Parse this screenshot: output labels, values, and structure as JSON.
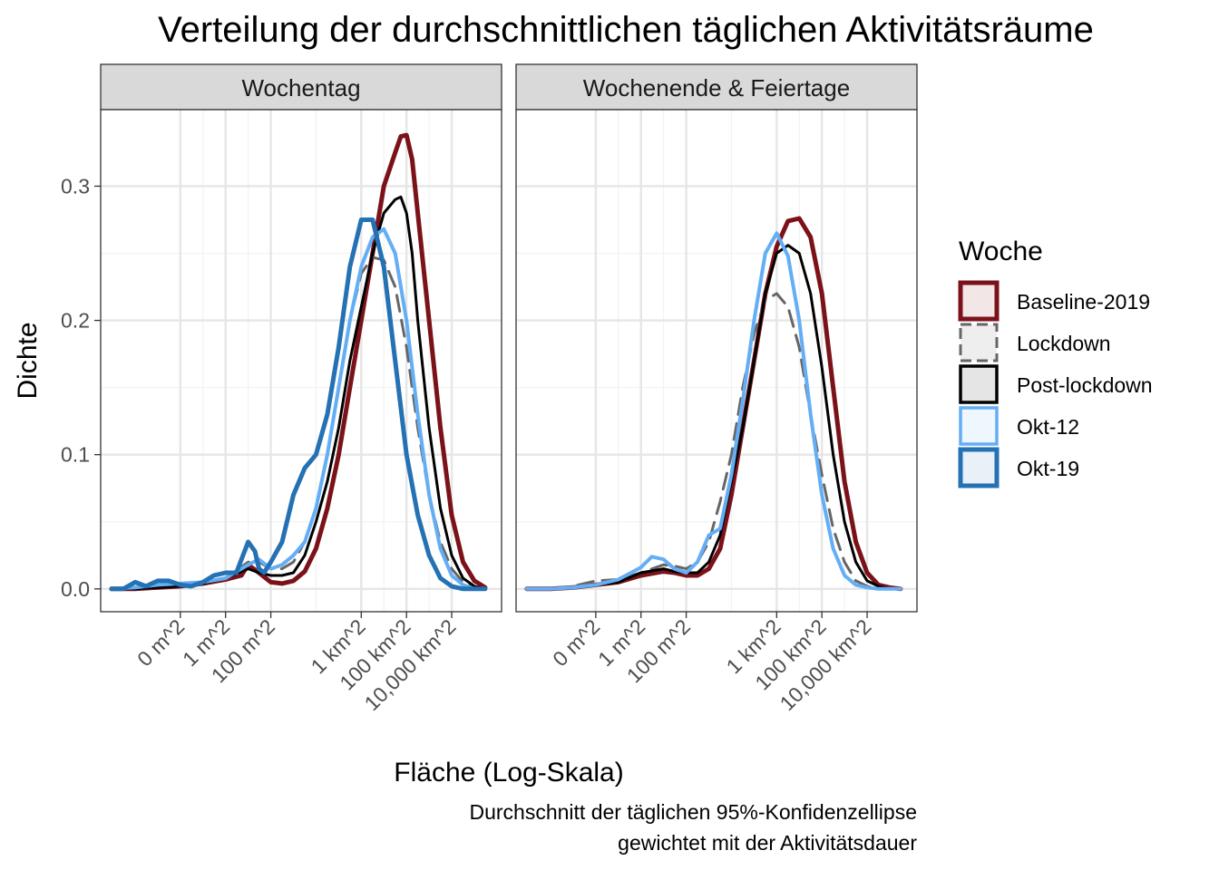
{
  "chart_data": {
    "type": "line",
    "subtype": "density",
    "title": "Verteilung der durchschnittlichen täglichen Aktivitätsräume",
    "xlabel": "Fläche (Log-Skala)",
    "ylabel": "Dichte",
    "caption_lines": [
      "Durchschnitt der täglichen 95%-Konfidenzellipse",
      "gewichtet mit der Aktivitätsdauer"
    ],
    "x_scale": "log10 (area in m^2)",
    "x_ticks": [
      {
        "label": "0 m^2",
        "value": 0.01
      },
      {
        "label": "1 m^2",
        "value": 1
      },
      {
        "label": "100 m^2",
        "value": 100
      },
      {
        "label": "1 km^2",
        "value": 1000000
      },
      {
        "label": "100 km^2",
        "value": 100000000
      },
      {
        "label": "10,000 km^2",
        "value": 10000000000
      }
    ],
    "xlim": [
      3e-06,
      1600000000000
    ],
    "y_ticks": [
      {
        "label": "0.0",
        "value": 0.0
      },
      {
        "label": "0.1",
        "value": 0.1
      },
      {
        "label": "0.2",
        "value": 0.2
      },
      {
        "label": "0.3",
        "value": 0.3
      }
    ],
    "ylim": [
      -0.017,
      0.357
    ],
    "grid": true,
    "legend": {
      "title": "Woche",
      "position": "right",
      "entries": [
        {
          "name": "Baseline-2019",
          "color": "#7b1219",
          "fill": "#f3e6e7",
          "dash": "solid",
          "width": 5
        },
        {
          "name": "Lockdown",
          "color": "#666666",
          "fill": "#eeeeee",
          "dash": "dashed",
          "width": 3
        },
        {
          "name": "Post-lockdown",
          "color": "#000000",
          "fill": "#e5e5e5",
          "dash": "solid",
          "width": 3
        },
        {
          "name": "Okt-12",
          "color": "#64aef5",
          "fill": "#eef6fe",
          "dash": "solid",
          "width": 4
        },
        {
          "name": "Okt-19",
          "color": "#2471b3",
          "fill": "#e9f0f7",
          "dash": "solid",
          "width": 5
        }
      ]
    },
    "panels": [
      {
        "name": "Wochentag",
        "series": [
          {
            "name": "Baseline-2019",
            "x": [
              9e-06,
              0.0001,
              0.001,
              0.01,
              0.1,
              1,
              5,
              10,
              30,
              100,
              316,
              1000,
              3162,
              10000,
              31623,
              100000,
              316228,
              1000000,
              3162278,
              10000000,
              31622777,
              56234133,
              100000000,
              177827941,
              316227766,
              1000000000,
              3162277660,
              10000000000,
              31622776602,
              100000000000,
              300000000000
            ],
            "y": [
              0.0,
              0.0,
              0.001,
              0.002,
              0.004,
              0.007,
              0.01,
              0.018,
              0.012,
              0.005,
              0.004,
              0.006,
              0.013,
              0.03,
              0.06,
              0.1,
              0.15,
              0.2,
              0.25,
              0.3,
              0.325,
              0.337,
              0.338,
              0.32,
              0.28,
              0.2,
              0.12,
              0.055,
              0.02,
              0.006,
              0.001
            ]
          },
          {
            "name": "Lockdown",
            "x": [
              9e-06,
              0.0001,
              0.001,
              0.01,
              0.1,
              1,
              10,
              30,
              100,
              316,
              1000,
              3162,
              10000,
              31623,
              100000,
              316228,
              1000000,
              3162278,
              10000000,
              31622777,
              100000000,
              316227766,
              1000000000,
              3162277660,
              10000000000,
              31622776602,
              100000000000,
              300000000000
            ],
            "y": [
              0.0,
              0.0,
              0.001,
              0.002,
              0.004,
              0.008,
              0.02,
              0.02,
              0.015,
              0.015,
              0.02,
              0.035,
              0.06,
              0.1,
              0.15,
              0.2,
              0.235,
              0.247,
              0.245,
              0.225,
              0.18,
              0.12,
              0.07,
              0.035,
              0.015,
              0.005,
              0.001,
              0.0
            ]
          },
          {
            "name": "Post-lockdown",
            "x": [
              9e-06,
              0.0001,
              0.001,
              0.01,
              0.1,
              1,
              10,
              30,
              100,
              316,
              1000,
              3162,
              10000,
              31623,
              100000,
              316228,
              1000000,
              3162278,
              10000000,
              31622777,
              56234133,
              100000000,
              177827941,
              316227766,
              1000000000,
              3162277660,
              10000000000,
              31622776602,
              100000000000,
              300000000000
            ],
            "y": [
              0.0,
              0.0,
              0.001,
              0.002,
              0.004,
              0.008,
              0.015,
              0.012,
              0.01,
              0.01,
              0.012,
              0.025,
              0.05,
              0.08,
              0.12,
              0.17,
              0.21,
              0.25,
              0.28,
              0.29,
              0.292,
              0.28,
              0.25,
              0.2,
              0.12,
              0.06,
              0.025,
              0.008,
              0.002,
              0.0
            ]
          },
          {
            "name": "Okt-12",
            "x": [
              9e-06,
              0.0001,
              0.001,
              0.01,
              0.1,
              1,
              10,
              30,
              100,
              316,
              1000,
              3162,
              10000,
              31623,
              100000,
              316228,
              1000000,
              3162278,
              10000000,
              31622777,
              100000000,
              316227766,
              1000000000,
              3162277660,
              10000000000,
              31622776602,
              100000000000,
              300000000000
            ],
            "y": [
              0.0,
              0.001,
              0.003,
              0.004,
              0.005,
              0.008,
              0.018,
              0.022,
              0.015,
              0.018,
              0.025,
              0.035,
              0.06,
              0.1,
              0.15,
              0.2,
              0.24,
              0.262,
              0.268,
              0.25,
              0.2,
              0.13,
              0.07,
              0.03,
              0.01,
              0.003,
              0.0,
              0.0
            ]
          },
          {
            "name": "Okt-19",
            "x": [
              9e-06,
              3e-05,
              0.0001,
              0.0003,
              0.001,
              0.003,
              0.01,
              0.03,
              0.1,
              0.3,
              1,
              3,
              10,
              20,
              30,
              50,
              100,
              316,
              1000,
              3162,
              10000,
              31623,
              100000,
              316228,
              1000000,
              3162278,
              10000000,
              31622777,
              100000000,
              316227766,
              1000000000,
              3162277660,
              10000000000,
              31622776602,
              100000000000,
              300000000000
            ],
            "y": [
              0.0,
              0.0,
              0.005,
              0.002,
              0.006,
              0.006,
              0.003,
              0.002,
              0.005,
              0.01,
              0.012,
              0.012,
              0.035,
              0.028,
              0.015,
              0.012,
              0.02,
              0.035,
              0.07,
              0.09,
              0.1,
              0.13,
              0.18,
              0.24,
              0.275,
              0.275,
              0.24,
              0.17,
              0.1,
              0.055,
              0.025,
              0.008,
              0.002,
              0.0,
              0.0,
              0.0
            ]
          }
        ]
      },
      {
        "name": "Wochenende & Feiertage",
        "series": [
          {
            "name": "Baseline-2019",
            "x": [
              9e-06,
              0.0001,
              0.001,
              0.01,
              0.1,
              1,
              10,
              30,
              100,
              316,
              1000,
              3162,
              10000,
              31623,
              100000,
              316228,
              1000000,
              3162278,
              10000000,
              31622777,
              100000000,
              316227766,
              1000000000,
              3162277660,
              10000000000,
              31622776602,
              100000000000,
              300000000000
            ],
            "y": [
              0.0,
              0.0,
              0.001,
              0.003,
              0.005,
              0.01,
              0.013,
              0.012,
              0.01,
              0.01,
              0.015,
              0.03,
              0.07,
              0.12,
              0.17,
              0.22,
              0.255,
              0.274,
              0.276,
              0.262,
              0.22,
              0.15,
              0.08,
              0.035,
              0.012,
              0.003,
              0.001,
              0.0
            ]
          },
          {
            "name": "Lockdown",
            "x": [
              9e-06,
              0.0001,
              0.001,
              0.01,
              0.1,
              1,
              10,
              30,
              100,
              316,
              1000,
              3162,
              10000,
              31623,
              100000,
              316228,
              1000000,
              3162278,
              10000000,
              31622777,
              100000000,
              316227766,
              1000000000,
              3162277660,
              10000000000,
              31622776602,
              100000000000,
              300000000000
            ],
            "y": [
              0.0,
              0.0,
              0.002,
              0.006,
              0.007,
              0.012,
              0.018,
              0.017,
              0.015,
              0.02,
              0.035,
              0.065,
              0.1,
              0.15,
              0.19,
              0.215,
              0.22,
              0.21,
              0.18,
              0.13,
              0.085,
              0.045,
              0.02,
              0.006,
              0.002,
              0.0,
              0.0,
              0.0
            ]
          },
          {
            "name": "Post-lockdown",
            "x": [
              9e-06,
              0.0001,
              0.001,
              0.01,
              0.1,
              1,
              10,
              30,
              100,
              316,
              1000,
              3162,
              10000,
              31623,
              100000,
              316228,
              1000000,
              3162278,
              10000000,
              31622777,
              100000000,
              316227766,
              1000000000,
              3162277660,
              10000000000,
              31622776602,
              100000000000,
              300000000000
            ],
            "y": [
              0.0,
              0.0,
              0.001,
              0.003,
              0.005,
              0.012,
              0.015,
              0.013,
              0.012,
              0.012,
              0.02,
              0.04,
              0.08,
              0.12,
              0.17,
              0.22,
              0.25,
              0.256,
              0.25,
              0.22,
              0.165,
              0.1,
              0.05,
              0.02,
              0.006,
              0.002,
              0.0,
              0.0
            ]
          },
          {
            "name": "Okt-12",
            "x": [
              9e-06,
              0.0001,
              0.001,
              0.01,
              0.1,
              1,
              3,
              10,
              30,
              100,
              316,
              1000,
              3162,
              10000,
              31623,
              100000,
              316228,
              1000000,
              3162278,
              10000000,
              31622777,
              100000000,
              316227766,
              1000000000,
              3162277660,
              10000000000,
              31622776602,
              100000000000,
              300000000000
            ],
            "y": [
              0.0,
              0.0,
              0.001,
              0.003,
              0.007,
              0.016,
              0.024,
              0.022,
              0.015,
              0.012,
              0.02,
              0.04,
              0.045,
              0.085,
              0.14,
              0.2,
              0.25,
              0.265,
              0.248,
              0.2,
              0.13,
              0.07,
              0.03,
              0.01,
              0.003,
              0.001,
              0.0,
              0.0,
              0.0
            ]
          }
        ]
      }
    ]
  }
}
